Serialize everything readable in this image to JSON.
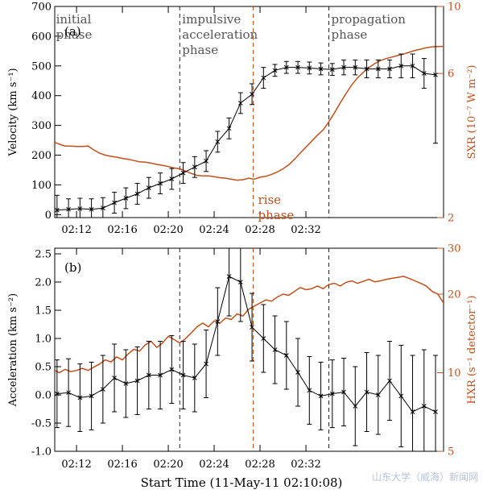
{
  "x_tick_labels": [
    "02:12",
    "02:16",
    "02:20",
    "02:24",
    "02:28",
    "02:32"
  ],
  "x_axis_title": "Start Time (11-May-11 02:10:08)",
  "watermark": "山东大学（威海）新闻网",
  "colors": {
    "primary": "#000000",
    "secondary": "#c0501c",
    "annotation": "#555555"
  },
  "x_domain_min": [
    2.1,
    36.0
  ],
  "phase_boundaries_min": [
    2.0,
    13.0,
    19.4,
    26.0
  ],
  "chart_data": [
    {
      "type": "line",
      "panel_label": "(a)",
      "x_range_min": [
        2.1,
        36.0
      ],
      "ylabel_left": "Velocity (km s⁻¹)",
      "ylabel_right": "SXR (10⁻⁷ W m⁻²)",
      "ylim_left": [
        -10,
        700
      ],
      "yticks_left": [
        0,
        100,
        200,
        300,
        400,
        500,
        600,
        700
      ],
      "yscale_right": "log",
      "ylim_right": [
        2,
        10
      ],
      "yticks_right": [
        2,
        6,
        10
      ],
      "annotations": [
        "initial phase",
        "impulsive acceleration phase",
        "propagation phase",
        "rise phase"
      ],
      "annotation_lines": [
        [
          "initial",
          "phase"
        ],
        [
          "impulsive",
          "acceleration",
          "phase"
        ],
        [
          "propagation",
          "phase"
        ],
        [
          "rise",
          "phase"
        ]
      ],
      "series": [
        {
          "axis": "left",
          "marker": "cross",
          "errorbars": true,
          "x": [
            2.3,
            3.3,
            4.3,
            5.3,
            6.3,
            7.3,
            8.3,
            9.3,
            10.3,
            11.3,
            12.3,
            13.3,
            14.3,
            15.3,
            16.3,
            17.3,
            18.3,
            19.3,
            20.3,
            21.3,
            22.3,
            23.3,
            24.3,
            25.3,
            26.3,
            27.3,
            28.3,
            29.3,
            30.3,
            31.3,
            32.3,
            33.3,
            34.3,
            35.3
          ],
          "y": [
            15,
            18,
            20,
            18,
            22,
            40,
            55,
            70,
            90,
            105,
            120,
            140,
            160,
            180,
            245,
            290,
            375,
            405,
            460,
            485,
            495,
            495,
            493,
            490,
            488,
            495,
            495,
            490,
            490,
            490,
            500,
            500,
            475,
            470
          ],
          "yerr": [
            50,
            35,
            35,
            35,
            35,
            35,
            35,
            35,
            35,
            35,
            35,
            35,
            35,
            35,
            35,
            35,
            35,
            35,
            35,
            20,
            20,
            20,
            20,
            20,
            20,
            25,
            25,
            30,
            30,
            30,
            40,
            40,
            50,
            230
          ]
        },
        {
          "axis": "right",
          "color": "#c0501c",
          "x": [
            2.1,
            2.5,
            3,
            3.5,
            4,
            4.5,
            5,
            5.5,
            6,
            6.5,
            7,
            7.5,
            8,
            8.5,
            9,
            9.5,
            10,
            10.5,
            11,
            11.5,
            12,
            12.5,
            13,
            13.5,
            14,
            14.5,
            15,
            15.5,
            16,
            16.5,
            17,
            17.5,
            18,
            18.5,
            19,
            19.5,
            20,
            20.5,
            21,
            21.5,
            22,
            22.5,
            23,
            23.5,
            24,
            24.5,
            25,
            25.5,
            26,
            26.5,
            27,
            27.5,
            28,
            28.5,
            29,
            29.5,
            30,
            30.5,
            31,
            31.5,
            32,
            32.5,
            33,
            33.5,
            34,
            34.5,
            35,
            35.5,
            36
          ],
          "y": [
            3.55,
            3.5,
            3.45,
            3.45,
            3.44,
            3.44,
            3.45,
            3.35,
            3.27,
            3.22,
            3.19,
            3.17,
            3.14,
            3.12,
            3.09,
            3.06,
            3.05,
            3.03,
            3.0,
            2.98,
            2.95,
            2.92,
            2.9,
            2.85,
            2.8,
            2.76,
            2.75,
            2.75,
            2.73,
            2.71,
            2.7,
            2.68,
            2.66,
            2.67,
            2.7,
            2.68,
            2.72,
            2.74,
            2.78,
            2.83,
            2.9,
            2.99,
            3.12,
            3.27,
            3.42,
            3.58,
            3.75,
            3.9,
            4.15,
            4.45,
            4.8,
            5.15,
            5.5,
            5.8,
            6.05,
            6.28,
            6.47,
            6.62,
            6.72,
            6.8,
            6.88,
            6.95,
            7.05,
            7.15,
            7.22,
            7.3,
            7.35,
            7.37,
            7.38
          ]
        }
      ]
    },
    {
      "type": "line",
      "panel_label": "(b)",
      "x_range_min": [
        2.1,
        36.0
      ],
      "ylabel_left": "Acceleration (km s⁻²)",
      "ylabel_right": "HXR (s⁻¹ detector⁻¹)",
      "ylim_left": [
        -1.0,
        2.6
      ],
      "yticks_left": [
        -1.0,
        -0.5,
        0.0,
        0.5,
        1.0,
        1.5,
        2.0,
        2.5
      ],
      "yscale_right": "log",
      "ylim_right": [
        5,
        30
      ],
      "yticks_right": [
        5,
        10,
        20,
        30
      ],
      "series": [
        {
          "axis": "left",
          "marker": "cross",
          "errorbars": true,
          "x": [
            2.3,
            3.3,
            4.3,
            5.3,
            6.3,
            7.3,
            8.3,
            9.3,
            10.3,
            11.3,
            12.3,
            13.3,
            14.3,
            15.3,
            16.3,
            17.3,
            18.3,
            19.3,
            20.3,
            21.3,
            22.3,
            23.3,
            24.3,
            25.3,
            26.3,
            27.3,
            28.3,
            29.3,
            30.3,
            31.3,
            32.3,
            33.3,
            34.3,
            35.3
          ],
          "y": [
            0.02,
            0.04,
            -0.05,
            -0.02,
            0.1,
            0.3,
            0.2,
            0.25,
            0.35,
            0.35,
            0.45,
            0.35,
            0.3,
            0.55,
            1.3,
            2.1,
            2.0,
            1.2,
            1.0,
            0.8,
            0.7,
            0.4,
            0.08,
            -0.02,
            0.02,
            0.05,
            -0.2,
            0.05,
            0.0,
            0.25,
            -0.02,
            -0.3,
            -0.2,
            -0.3
          ],
          "yerr": [
            0.6,
            0.6,
            0.6,
            0.6,
            0.6,
            0.6,
            0.6,
            0.6,
            0.6,
            0.6,
            0.6,
            0.6,
            0.6,
            0.6,
            0.6,
            0.7,
            0.7,
            0.6,
            0.6,
            0.6,
            0.6,
            0.6,
            0.6,
            0.6,
            0.6,
            0.6,
            0.7,
            0.7,
            0.7,
            0.7,
            0.9,
            1.0,
            1.0,
            1.0
          ]
        },
        {
          "axis": "right",
          "color": "#c0501c",
          "x": [
            2.1,
            2.5,
            3,
            3.5,
            4,
            4.5,
            5,
            5.5,
            6,
            6.5,
            7,
            7.5,
            8,
            8.5,
            9,
            9.5,
            10,
            10.5,
            11,
            11.5,
            12,
            12.5,
            13,
            13.5,
            14,
            14.5,
            15,
            15.5,
            16,
            16.5,
            17,
            17.5,
            18,
            18.5,
            19,
            19.5,
            20,
            20.5,
            21,
            21.5,
            22,
            22.5,
            23,
            23.5,
            24,
            24.5,
            25,
            25.5,
            26,
            26.5,
            27,
            27.5,
            28,
            28.5,
            29,
            29.5,
            30,
            30.5,
            31,
            31.5,
            32,
            32.5,
            33,
            33.5,
            34,
            34.5,
            35,
            35.5,
            36
          ],
          "y": [
            10.2,
            10.0,
            10.3,
            10.1,
            10.2,
            10.4,
            10.2,
            10.5,
            10.8,
            11.2,
            11.0,
            11.5,
            11.2,
            11.8,
            12.3,
            12.1,
            12.8,
            13.2,
            12.5,
            13.0,
            13.8,
            13.4,
            13.0,
            13.5,
            14.2,
            15.0,
            15.5,
            15.0,
            15.8,
            15.5,
            16.2,
            16.0,
            16.8,
            16.5,
            17.5,
            18.0,
            18.5,
            19.0,
            18.8,
            19.5,
            20.0,
            19.8,
            20.5,
            21.2,
            20.8,
            21.0,
            21.5,
            21.0,
            21.8,
            22.0,
            21.5,
            22.2,
            22.5,
            22.0,
            22.4,
            22.8,
            22.3,
            22.5,
            22.8,
            23.0,
            23.2,
            23.4,
            23.0,
            22.5,
            22.0,
            21.5,
            20.5,
            20.0,
            18.5
          ]
        }
      ]
    }
  ]
}
